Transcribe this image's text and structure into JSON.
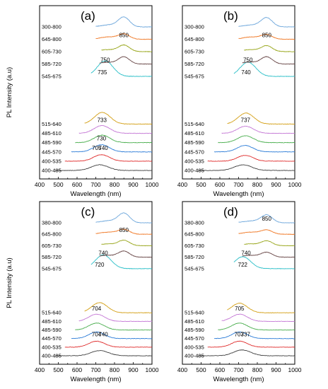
{
  "chart_data": [
    {
      "type": "line",
      "panel": "(a)",
      "xlabel": "Wavelength (nm)",
      "ylabel": "PL Intensity (a.u)",
      "xlim": [
        400,
        1000
      ],
      "xticks": [
        "400",
        "500",
        "600",
        "700",
        "800",
        "900",
        "1000"
      ],
      "series": [
        {
          "name": "400-485",
          "color": "#404040",
          "peaks": [
            {
              "x": 705,
              "h": 0.5
            },
            {
              "x": 740,
              "h": 0.45
            }
          ],
          "start": 485,
          "end": 1000
        },
        {
          "name": "400-535",
          "color": "#e03030",
          "peaks": [
            {
              "x": 730,
              "h": 1.0
            }
          ],
          "start": 535,
          "end": 1000
        },
        {
          "name": "445-570",
          "color": "#2f7ed8",
          "peaks": [
            {
              "x": 730,
              "h": 1.1
            }
          ],
          "start": 570,
          "end": 1000
        },
        {
          "name": "485-590",
          "color": "#4caf50",
          "peaks": [
            {
              "x": 733,
              "h": 1.15
            }
          ],
          "start": 590,
          "end": 1000
        },
        {
          "name": "485-610",
          "color": "#c57ad6",
          "peaks": [
            {
              "x": 733,
              "h": 1.2
            }
          ],
          "start": 610,
          "end": 1000
        },
        {
          "name": "515-640",
          "color": "#d4a017",
          "peaks": [
            {
              "x": 735,
              "h": 1.8
            }
          ],
          "start": 640,
          "end": 1000
        },
        {
          "name": "545-675",
          "color": "#2bbfc8",
          "peaks": [
            {
              "x": 750,
              "h": 2.4
            }
          ],
          "start": 675,
          "end": 1000
        },
        {
          "name": "585-720",
          "color": "#6b4a4a",
          "peaks": [
            {
              "x": 850,
              "h": 1.1
            },
            {
              "x": 760,
              "h": 0.25
            }
          ],
          "start": 720,
          "end": 1000
        },
        {
          "name": "605-730",
          "color": "#9aa81f",
          "peaks": [
            {
              "x": 850,
              "h": 1.0
            },
            {
              "x": 760,
              "h": 0.3
            }
          ],
          "start": 730,
          "end": 1000
        },
        {
          "name": "645-800",
          "color": "#f07a28",
          "peaks": [
            {
              "x": 850,
              "h": 0.8
            },
            {
              "x": 765,
              "h": 0.35
            }
          ],
          "start": 700,
          "end": 1000
        },
        {
          "name": "300-800",
          "color": "#6fa8dc",
          "peaks": [
            {
              "x": 850,
              "h": 1.5
            },
            {
              "x": 770,
              "h": 0.3
            }
          ],
          "start": 700,
          "end": 1000
        }
      ],
      "peak_labels": [
        {
          "text": "850",
          "x": 850,
          "series": "645-800"
        },
        {
          "text": "750",
          "x": 750,
          "series": "585-720"
        },
        {
          "text": "735",
          "x": 735,
          "series": "545-675"
        },
        {
          "text": "733",
          "x": 733,
          "series": "515-640"
        },
        {
          "text": "730",
          "x": 730,
          "series": "485-590"
        },
        {
          "text": "705",
          "x": 705,
          "series": "445-570"
        },
        {
          "text": "740",
          "x": 740,
          "series": "445-570"
        }
      ]
    },
    {
      "type": "line",
      "panel": "(b)",
      "xlabel": "Wavelength (nm)",
      "ylabel": "PL Intensity (a.u)",
      "xlim": [
        400,
        1000
      ],
      "xticks": [
        "400",
        "500",
        "600",
        "700",
        "800",
        "900",
        "1000"
      ],
      "series": [
        {
          "name": "400-485",
          "color": "#404040",
          "peaks": [
            {
              "x": 705,
              "h": 0.45
            },
            {
              "x": 740,
              "h": 0.5
            }
          ],
          "start": 485,
          "end": 1000
        },
        {
          "name": "400-535",
          "color": "#e03030",
          "peaks": [
            {
              "x": 735,
              "h": 0.9
            }
          ],
          "start": 535,
          "end": 1000
        },
        {
          "name": "445-570",
          "color": "#2f7ed8",
          "peaks": [
            {
              "x": 735,
              "h": 1.0
            }
          ],
          "start": 570,
          "end": 1000
        },
        {
          "name": "485-590",
          "color": "#4caf50",
          "peaks": [
            {
              "x": 737,
              "h": 1.05
            }
          ],
          "start": 590,
          "end": 1000
        },
        {
          "name": "485-610",
          "color": "#c57ad6",
          "peaks": [
            {
              "x": 737,
              "h": 1.1
            }
          ],
          "start": 610,
          "end": 1000
        },
        {
          "name": "515-640",
          "color": "#d4a017",
          "peaks": [
            {
              "x": 740,
              "h": 1.7
            }
          ],
          "start": 640,
          "end": 1000
        },
        {
          "name": "545-675",
          "color": "#2bbfc8",
          "peaks": [
            {
              "x": 750,
              "h": 2.2
            }
          ],
          "start": 675,
          "end": 1000
        },
        {
          "name": "585-720",
          "color": "#6b4a4a",
          "peaks": [
            {
              "x": 850,
              "h": 1.1
            },
            {
              "x": 760,
              "h": 0.3
            }
          ],
          "start": 720,
          "end": 1000
        },
        {
          "name": "605-730",
          "color": "#9aa81f",
          "peaks": [
            {
              "x": 850,
              "h": 0.9
            },
            {
              "x": 760,
              "h": 0.3
            }
          ],
          "start": 730,
          "end": 1000
        },
        {
          "name": "645-800",
          "color": "#f07a28",
          "peaks": [
            {
              "x": 850,
              "h": 0.7
            },
            {
              "x": 765,
              "h": 0.35
            }
          ],
          "start": 700,
          "end": 1000
        },
        {
          "name": "300-800",
          "color": "#6fa8dc",
          "peaks": [
            {
              "x": 850,
              "h": 1.4
            },
            {
              "x": 770,
              "h": 0.3
            }
          ],
          "start": 700,
          "end": 1000
        }
      ],
      "peak_labels": [
        {
          "text": "850",
          "x": 850,
          "series": "645-800"
        },
        {
          "text": "750",
          "x": 750,
          "series": "585-720"
        },
        {
          "text": "740",
          "x": 740,
          "series": "545-675"
        },
        {
          "text": "737",
          "x": 737,
          "series": "515-640"
        }
      ]
    },
    {
      "type": "line",
      "panel": "(c)",
      "xlabel": "Wavelength (nm)",
      "ylabel": "PL Intensity (a.u)",
      "xlim": [
        400,
        1000
      ],
      "xticks": [
        "400",
        "500",
        "600",
        "700",
        "800",
        "900",
        "1000"
      ],
      "series": [
        {
          "name": "400-485",
          "color": "#404040",
          "peaks": [
            {
              "x": 704,
              "h": 0.5
            },
            {
              "x": 740,
              "h": 0.45
            }
          ],
          "start": 485,
          "end": 1000
        },
        {
          "name": "400-535",
          "color": "#e03030",
          "peaks": [
            {
              "x": 705,
              "h": 1.0
            }
          ],
          "start": 535,
          "end": 1000
        },
        {
          "name": "445-570",
          "color": "#2f7ed8",
          "peaks": [
            {
              "x": 705,
              "h": 1.1
            }
          ],
          "start": 570,
          "end": 1000
        },
        {
          "name": "485-590",
          "color": "#4caf50",
          "peaks": [
            {
              "x": 705,
              "h": 1.15
            }
          ],
          "start": 590,
          "end": 1000
        },
        {
          "name": "485-610",
          "color": "#c57ad6",
          "peaks": [
            {
              "x": 705,
              "h": 1.2
            }
          ],
          "start": 610,
          "end": 1000
        },
        {
          "name": "515-640",
          "color": "#d4a017",
          "peaks": [
            {
              "x": 720,
              "h": 1.7
            }
          ],
          "start": 640,
          "end": 1000
        },
        {
          "name": "545-675",
          "color": "#2bbfc8",
          "peaks": [
            {
              "x": 740,
              "h": 2.3
            }
          ],
          "start": 675,
          "end": 1000
        },
        {
          "name": "585-720",
          "color": "#6b4a4a",
          "peaks": [
            {
              "x": 850,
              "h": 1.0
            },
            {
              "x": 760,
              "h": 0.3
            }
          ],
          "start": 720,
          "end": 1000
        },
        {
          "name": "605-730",
          "color": "#9aa81f",
          "peaks": [
            {
              "x": 850,
              "h": 0.9
            },
            {
              "x": 760,
              "h": 0.3
            }
          ],
          "start": 730,
          "end": 1000
        },
        {
          "name": "645-800",
          "color": "#f07a28",
          "peaks": [
            {
              "x": 850,
              "h": 0.8
            },
            {
              "x": 765,
              "h": 0.35
            }
          ],
          "start": 700,
          "end": 1000
        },
        {
          "name": "380-800",
          "color": "#6fa8dc",
          "peaks": [
            {
              "x": 850,
              "h": 1.6
            },
            {
              "x": 770,
              "h": 0.35
            }
          ],
          "start": 700,
          "end": 1000
        }
      ],
      "peak_labels": [
        {
          "text": "850",
          "x": 850,
          "series": "645-800"
        },
        {
          "text": "740",
          "x": 740,
          "series": "585-720"
        },
        {
          "text": "720",
          "x": 720,
          "series": "545-675"
        },
        {
          "text": "704",
          "x": 704,
          "series": "515-640"
        },
        {
          "text": "704",
          "x": 704,
          "series": "445-570"
        },
        {
          "text": "740",
          "x": 740,
          "series": "445-570"
        }
      ]
    },
    {
      "type": "line",
      "panel": "(d)",
      "xlabel": "Wavelength (nm)",
      "ylabel": "PL Intensity (a.u)",
      "xlim": [
        400,
        1000
      ],
      "xticks": [
        "400",
        "500",
        "600",
        "700",
        "800",
        "900",
        "1000"
      ],
      "series": [
        {
          "name": "400-485",
          "color": "#404040",
          "peaks": [
            {
              "x": 703,
              "h": 0.55
            },
            {
              "x": 737,
              "h": 0.5
            }
          ],
          "start": 485,
          "end": 1000
        },
        {
          "name": "400-535",
          "color": "#e03030",
          "peaks": [
            {
              "x": 705,
              "h": 1.0
            }
          ],
          "start": 535,
          "end": 1000
        },
        {
          "name": "445-570",
          "color": "#2f7ed8",
          "peaks": [
            {
              "x": 705,
              "h": 1.1
            }
          ],
          "start": 570,
          "end": 1000
        },
        {
          "name": "485-590",
          "color": "#4caf50",
          "peaks": [
            {
              "x": 705,
              "h": 1.15
            }
          ],
          "start": 590,
          "end": 1000
        },
        {
          "name": "485-610",
          "color": "#c57ad6",
          "peaks": [
            {
              "x": 705,
              "h": 1.2
            }
          ],
          "start": 610,
          "end": 1000
        },
        {
          "name": "515-640",
          "color": "#d4a017",
          "peaks": [
            {
              "x": 705,
              "h": 1.6
            }
          ],
          "start": 640,
          "end": 1000
        },
        {
          "name": "545-675",
          "color": "#2bbfc8",
          "peaks": [
            {
              "x": 722,
              "h": 2.0
            }
          ],
          "start": 675,
          "end": 1000
        },
        {
          "name": "585-720",
          "color": "#6b4a4a",
          "peaks": [
            {
              "x": 850,
              "h": 0.8
            },
            {
              "x": 760,
              "h": 0.3
            }
          ],
          "start": 720,
          "end": 1000
        },
        {
          "name": "605-730",
          "color": "#9aa81f",
          "peaks": [
            {
              "x": 850,
              "h": 0.8
            },
            {
              "x": 760,
              "h": 0.3
            }
          ],
          "start": 730,
          "end": 1000
        },
        {
          "name": "645-800",
          "color": "#f07a28",
          "peaks": [
            {
              "x": 850,
              "h": 0.7
            },
            {
              "x": 765,
              "h": 0.35
            }
          ],
          "start": 700,
          "end": 1000
        },
        {
          "name": "380-800",
          "color": "#6fa8dc",
          "peaks": [
            {
              "x": 850,
              "h": 1.3
            },
            {
              "x": 770,
              "h": 0.3
            }
          ],
          "start": 700,
          "end": 1000
        }
      ],
      "peak_labels": [
        {
          "text": "850",
          "x": 850,
          "series": "380-800"
        },
        {
          "text": "740",
          "x": 740,
          "series": "585-720"
        },
        {
          "text": "722",
          "x": 722,
          "series": "545-675"
        },
        {
          "text": "705",
          "x": 705,
          "series": "515-640"
        },
        {
          "text": "703",
          "x": 703,
          "series": "445-570"
        },
        {
          "text": "737",
          "x": 737,
          "series": "445-570"
        }
      ]
    }
  ]
}
